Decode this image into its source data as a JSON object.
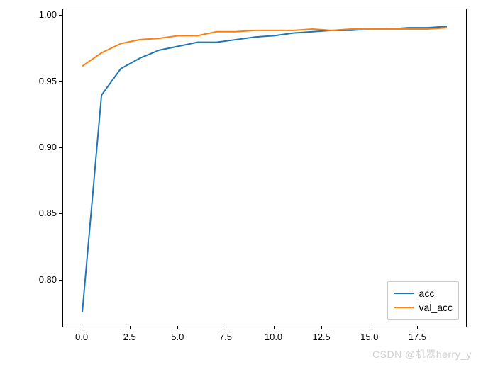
{
  "chart": {
    "type": "line",
    "background_color": "#ffffff",
    "border_color": "#000000",
    "xlim": [
      -1.0,
      20.0
    ],
    "ylim": [
      0.765,
      1.005
    ],
    "xticks": [
      0.0,
      2.5,
      5.0,
      7.5,
      10.0,
      12.5,
      15.0,
      17.5
    ],
    "xtick_labels": [
      "0.0",
      "2.5",
      "5.0",
      "7.5",
      "10.0",
      "12.5",
      "15.0",
      "17.5"
    ],
    "yticks": [
      0.8,
      0.85,
      0.9,
      0.95,
      1.0
    ],
    "ytick_labels": [
      "0.80",
      "0.85",
      "0.90",
      "0.95",
      "1.00"
    ],
    "tick_fontsize": 13,
    "line_width": 2,
    "series": [
      {
        "name": "acc",
        "label": "acc",
        "color": "#1f77b4",
        "x": [
          0,
          1,
          2,
          3,
          4,
          5,
          6,
          7,
          8,
          9,
          10,
          11,
          12,
          13,
          14,
          15,
          16,
          17,
          18,
          19
        ],
        "y": [
          0.776,
          0.94,
          0.96,
          0.968,
          0.974,
          0.977,
          0.98,
          0.98,
          0.982,
          0.984,
          0.985,
          0.987,
          0.988,
          0.989,
          0.989,
          0.99,
          0.99,
          0.991,
          0.991,
          0.992
        ]
      },
      {
        "name": "val_acc",
        "label": "val_acc",
        "color": "#ff7f0e",
        "x": [
          0,
          1,
          2,
          3,
          4,
          5,
          6,
          7,
          8,
          9,
          10,
          11,
          12,
          13,
          14,
          15,
          16,
          17,
          18,
          19
        ],
        "y": [
          0.962,
          0.972,
          0.979,
          0.982,
          0.983,
          0.985,
          0.985,
          0.988,
          0.988,
          0.989,
          0.989,
          0.989,
          0.99,
          0.989,
          0.99,
          0.99,
          0.99,
          0.99,
          0.99,
          0.991
        ]
      }
    ],
    "legend": {
      "position": "lower-right",
      "border_color": "#cccccc",
      "fontsize": 14,
      "items": [
        {
          "label": "acc",
          "color": "#1f77b4"
        },
        {
          "label": "val_acc",
          "color": "#ff7f0e"
        }
      ]
    },
    "watermark": "CSDN @机器herry_y"
  }
}
